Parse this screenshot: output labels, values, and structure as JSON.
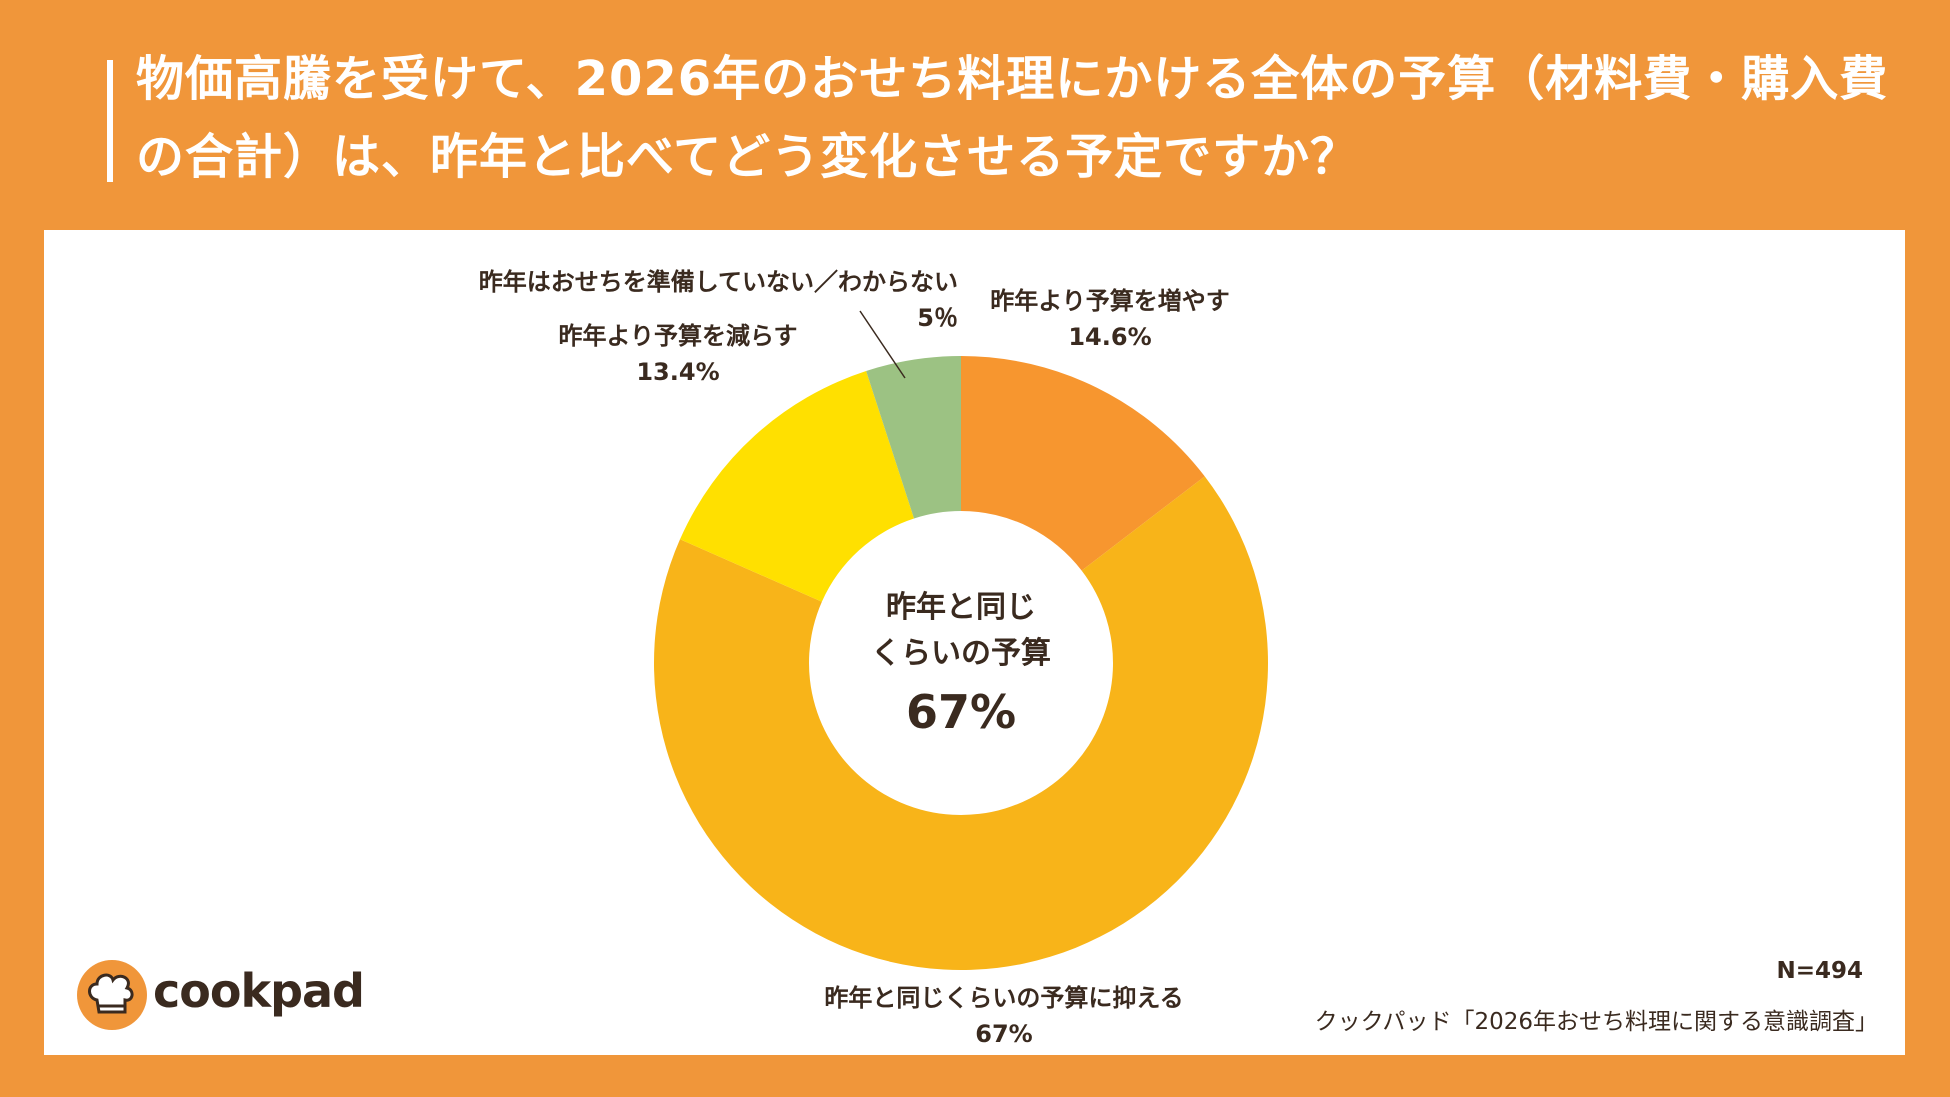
{
  "title": "物価高騰を受けて、2026年のおせち料理にかける全体の予算（材料費・購入費の合計）は、昨年と比べてどう変化させる予定ですか？",
  "chart_data": {
    "type": "pie",
    "donut": true,
    "title": "物価高騰を受けて、2026年のおせち料理にかける全体の予算（材料費・購入費の合計）は、昨年と比べてどう変化させる予定ですか？",
    "slices": [
      {
        "label": "昨年より予算を増やす",
        "value": 14.6,
        "value_label": "14.6%",
        "color": "#F7962F"
      },
      {
        "label": "昨年と同じくらいの予算に抑える",
        "value": 67,
        "value_label": "67%",
        "color": "#F8B419"
      },
      {
        "label": "昨年より予算を減らす",
        "value": 13.4,
        "value_label": "13.4%",
        "color": "#FFE000"
      },
      {
        "label": "昨年はおせちを準備していない／わからない",
        "value": 5,
        "value_label": "5％",
        "color": "#9CC283"
      }
    ],
    "center_label": {
      "line1": "昨年と同じ",
      "line2": "くらいの予算",
      "value": "67%"
    }
  },
  "footer": {
    "logo_text": "cookpad",
    "n": "N=494",
    "source": "クックパッド「2026年おせち料理に関する意識調査」"
  }
}
